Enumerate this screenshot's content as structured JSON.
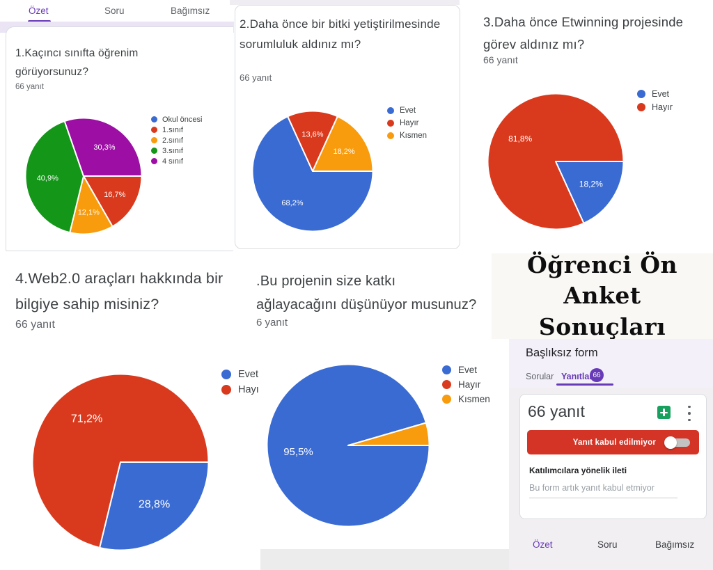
{
  "colors": {
    "blue": "#3A6BD2",
    "red": "#D93A1E",
    "orange": "#F89B0C",
    "green": "#149618",
    "purple": "#9C0EA4",
    "forms_purple": "#673AB7",
    "banner_red": "#D33426",
    "sheets_green": "#17A05E"
  },
  "top_tabs": {
    "ozet": "Özet",
    "soru": "Soru",
    "bagimsiz": "Bağımsız"
  },
  "title_block": {
    "line1": "Öğrenci Ön Anket",
    "line2": "Sonuçları"
  },
  "forms_panel": {
    "form_title": "Başlıksız form",
    "tab_questions": "Sorular",
    "tab_responses": "Yanıtlar",
    "responses_badge": "66",
    "responses_count": "66 yanıt",
    "banner_text": "Yanıt kabul edilmiyor",
    "message_label": "Katılımcılara yönelik ileti",
    "message_placeholder": "Bu form artık yanıt kabul etmiyor",
    "bottom_ozet": "Özet",
    "bottom_soru": "Soru",
    "bottom_bagimsiz": "Bağımsız"
  },
  "chart_data": [
    {
      "type": "pie",
      "title": "1.Kaçıncı sınıfta öğrenim görüyorsunuz?",
      "subtitle": "66 yanıt",
      "categories": [
        "Okul öncesi",
        "1.sınıf",
        "2.sınıf",
        "3.sınıf",
        "4 sınıf"
      ],
      "values": [
        0,
        16.7,
        12.1,
        40.9,
        30.3
      ],
      "slice_labels": [
        "",
        "16,7%",
        "12,1%",
        "40,9%",
        "30,3%"
      ],
      "colors": [
        "#3A6BD2",
        "#D93A1E",
        "#F89B0C",
        "#149618",
        "#9C0EA4"
      ],
      "start_angle": 90,
      "direction": "clockwise",
      "legend_position": "right"
    },
    {
      "type": "pie",
      "title": "2.Daha önce bir bitki yetiştirilmesinde sorumluluk aldınız mı?",
      "subtitle": "66 yanıt",
      "categories": [
        "Evet",
        "Hayır",
        "Kısmen"
      ],
      "values": [
        68.2,
        13.6,
        18.2
      ],
      "slice_labels": [
        "68,2%",
        "13,6%",
        "18,2%"
      ],
      "colors": [
        "#3A6BD2",
        "#D93A1E",
        "#F89B0C"
      ],
      "start_angle": 90,
      "direction": "clockwise",
      "legend_position": "right"
    },
    {
      "type": "pie",
      "title": "3.Daha önce Etwinning projesinde görev aldınız mı?",
      "subtitle": "66 yanıt",
      "categories": [
        "Evet",
        "Hayır"
      ],
      "values": [
        18.2,
        81.8
      ],
      "slice_labels": [
        "18,2%",
        "81,8%"
      ],
      "colors": [
        "#3A6BD2",
        "#D93A1E"
      ],
      "start_angle": 90,
      "direction": "clockwise",
      "legend_position": "right"
    },
    {
      "type": "pie",
      "title": "4.Web2.0 araçları hakkında bir bilgiye sahip misiniz?",
      "subtitle": "66 yanıt",
      "categories": [
        "Evet",
        "Hayı"
      ],
      "values": [
        28.8,
        71.2
      ],
      "slice_labels": [
        "28,8%",
        "71,2%"
      ],
      "colors": [
        "#3A6BD2",
        "#D93A1E"
      ],
      "start_angle": 90,
      "direction": "clockwise",
      "legend_position": "right"
    },
    {
      "type": "pie",
      "title": ".Bu projenin size katkı ağlayacağını düşünüyor musunuz?",
      "subtitle": "6 yanıt",
      "categories": [
        "Evet",
        "Hayır",
        "Kısmen"
      ],
      "values": [
        95.5,
        0,
        4.5
      ],
      "slice_labels": [
        "95,5%",
        "",
        ""
      ],
      "colors": [
        "#3A6BD2",
        "#D93A1E",
        "#F89B0C"
      ],
      "start_angle": 90,
      "direction": "clockwise",
      "legend_position": "right"
    }
  ]
}
